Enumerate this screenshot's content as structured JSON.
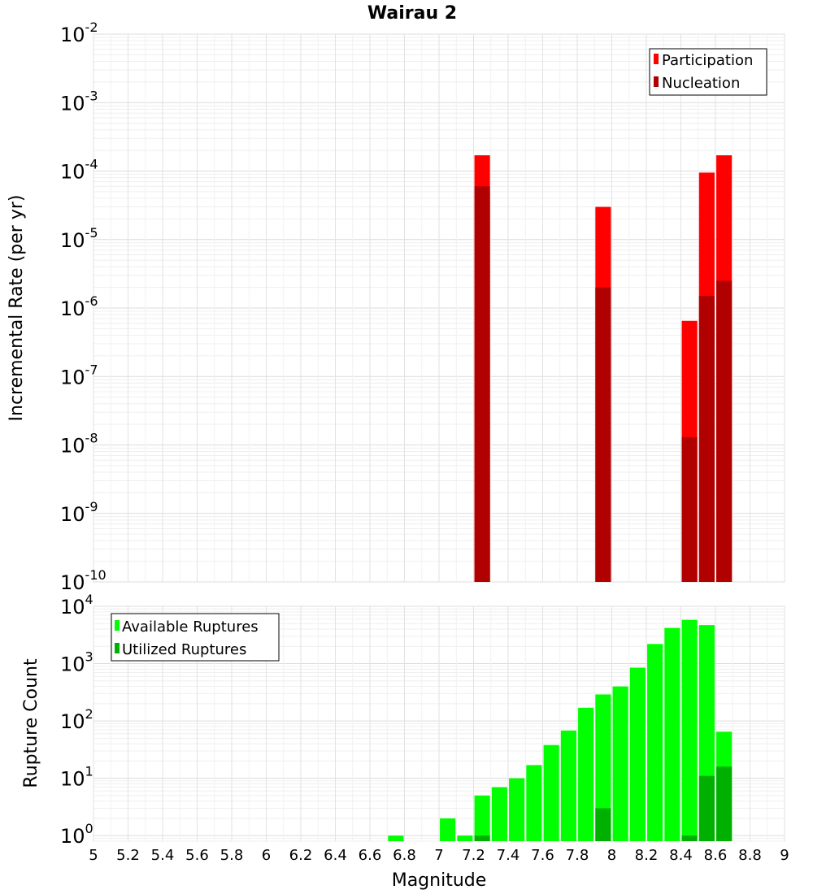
{
  "chart_data": [
    {
      "type": "bar",
      "title": "Wairau 2",
      "ylabel": "Incremental Rate (per yr)",
      "xlabel": "",
      "yscale": "log",
      "ylim": [
        1e-10,
        0.01
      ],
      "y_ticks": [
        {
          "base": "10",
          "exp": "-10",
          "value": 1e-10
        },
        {
          "base": "10",
          "exp": "-9",
          "value": 1e-09
        },
        {
          "base": "10",
          "exp": "-8",
          "value": 1e-08
        },
        {
          "base": "10",
          "exp": "-7",
          "value": 1e-07
        },
        {
          "base": "10",
          "exp": "-6",
          "value": 1e-06
        },
        {
          "base": "10",
          "exp": "-5",
          "value": 1e-05
        },
        {
          "base": "10",
          "exp": "-4",
          "value": 0.0001
        },
        {
          "base": "10",
          "exp": "-3",
          "value": 0.001
        },
        {
          "base": "10",
          "exp": "-2",
          "value": 0.01
        }
      ],
      "grid": true,
      "legend_position": "top-right",
      "x": [
        7.25,
        7.95,
        8.45,
        8.55,
        8.65
      ],
      "series": [
        {
          "name": "Participation",
          "color": "#ff0000",
          "values": [
            0.00017,
            3e-05,
            6.5e-07,
            9.5e-05,
            0.00017
          ]
        },
        {
          "name": "Nucleation",
          "color": "#b00000",
          "values": [
            6e-05,
            2e-06,
            1.3e-08,
            1.5e-06,
            2.5e-06
          ]
        }
      ]
    },
    {
      "type": "bar",
      "title": "",
      "ylabel": "Rupture Count",
      "xlabel": "Magnitude",
      "yscale": "log",
      "ylim": [
        0.8,
        10000.0
      ],
      "xlim": [
        5,
        9
      ],
      "x_ticks": [
        "5",
        "5.2",
        "5.4",
        "5.6",
        "5.8",
        "6",
        "6.2",
        "6.4",
        "6.6",
        "6.8",
        "7",
        "7.2",
        "7.4",
        "7.6",
        "7.8",
        "8",
        "8.2",
        "8.4",
        "8.6",
        "8.8",
        "9"
      ],
      "y_ticks": [
        {
          "base": "10",
          "exp": "0",
          "value": 1
        },
        {
          "base": "10",
          "exp": "1",
          "value": 10
        },
        {
          "base": "10",
          "exp": "2",
          "value": 100
        },
        {
          "base": "10",
          "exp": "3",
          "value": 1000
        },
        {
          "base": "10",
          "exp": "4",
          "value": 10000
        }
      ],
      "grid": true,
      "legend_position": "top-left",
      "series": [
        {
          "name": "Available Ruptures",
          "color": "#00ff00",
          "x": [
            6.75,
            7.05,
            7.15,
            7.25,
            7.35,
            7.45,
            7.55,
            7.65,
            7.75,
            7.85,
            7.95,
            8.05,
            8.15,
            8.25,
            8.35,
            8.45,
            8.55,
            8.65
          ],
          "values": [
            1,
            2,
            1,
            5,
            7,
            10,
            17,
            38,
            68,
            170,
            290,
            400,
            850,
            2200,
            4200,
            5800,
            4700,
            65
          ]
        },
        {
          "name": "Utilized Ruptures",
          "color": "#00b000",
          "x": [
            7.25,
            7.95,
            8.45,
            8.55,
            8.65
          ],
          "values": [
            1,
            3,
            1,
            11,
            16
          ]
        }
      ]
    }
  ]
}
